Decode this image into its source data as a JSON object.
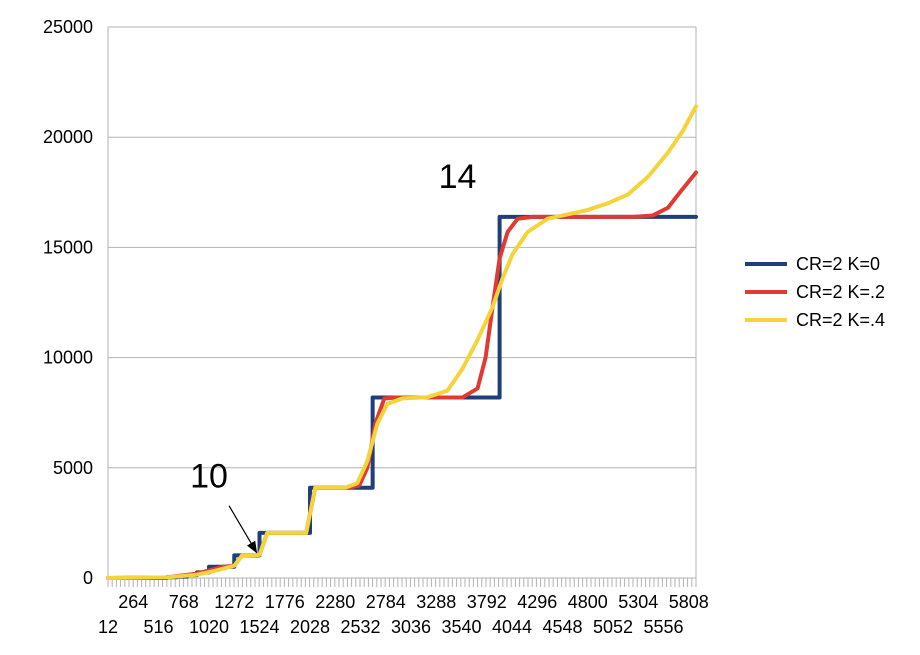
{
  "chart_data": {
    "type": "line",
    "title": "",
    "xlabel": "",
    "ylabel": "",
    "xlim": [
      12,
      5880
    ],
    "ylim": [
      0,
      25000
    ],
    "y_ticks": [
      0,
      5000,
      10000,
      15000,
      20000,
      25000
    ],
    "x_tick_labels_row1": [
      "264",
      "768",
      "1272",
      "1776",
      "2280",
      "2784",
      "3288",
      "3792",
      "4296",
      "4800",
      "5304",
      "5808"
    ],
    "x_tick_labels_row2": [
      "12",
      "516",
      "1020",
      "1524",
      "2028",
      "2532",
      "3036",
      "3540",
      "4044",
      "4548",
      "5052",
      "5556"
    ],
    "grid": "horizontal",
    "legend_position": "right",
    "series": [
      {
        "name": "CR=2 K=0",
        "color": "#1f3f7a",
        "points": [
          [
            12,
            0
          ],
          [
            600,
            0
          ],
          [
            600,
            32
          ],
          [
            700,
            32
          ],
          [
            700,
            64
          ],
          [
            800,
            64
          ],
          [
            800,
            128
          ],
          [
            900,
            128
          ],
          [
            900,
            256
          ],
          [
            1020,
            256
          ],
          [
            1020,
            512
          ],
          [
            1272,
            512
          ],
          [
            1272,
            1024
          ],
          [
            1524,
            1024
          ],
          [
            1524,
            2048
          ],
          [
            2028,
            2048
          ],
          [
            2028,
            4096
          ],
          [
            2653,
            4096
          ],
          [
            2653,
            8192
          ],
          [
            3920,
            8192
          ],
          [
            3920,
            16384
          ],
          [
            5880,
            16384
          ]
        ]
      },
      {
        "name": "CR=2 K=.2",
        "color": "#e03a32",
        "points": [
          [
            12,
            0
          ],
          [
            600,
            30
          ],
          [
            900,
            200
          ],
          [
            1150,
            500
          ],
          [
            1272,
            560
          ],
          [
            1350,
            1024
          ],
          [
            1524,
            1050
          ],
          [
            1600,
            2048
          ],
          [
            1990,
            2048
          ],
          [
            2080,
            4096
          ],
          [
            2420,
            4100
          ],
          [
            2520,
            4200
          ],
          [
            2600,
            5000
          ],
          [
            2680,
            7000
          ],
          [
            2770,
            8150
          ],
          [
            2900,
            8192
          ],
          [
            3550,
            8192
          ],
          [
            3700,
            8600
          ],
          [
            3780,
            10000
          ],
          [
            3850,
            12300
          ],
          [
            3920,
            14500
          ],
          [
            4000,
            15700
          ],
          [
            4100,
            16300
          ],
          [
            4250,
            16384
          ],
          [
            5250,
            16384
          ],
          [
            5450,
            16450
          ],
          [
            5600,
            16800
          ],
          [
            5720,
            17500
          ],
          [
            5880,
            18400
          ]
        ]
      },
      {
        "name": "CR=2 K=.4",
        "color": "#f5d33a",
        "points": [
          [
            12,
            0
          ],
          [
            600,
            30
          ],
          [
            900,
            150
          ],
          [
            1100,
            350
          ],
          [
            1272,
            560
          ],
          [
            1350,
            1024
          ],
          [
            1524,
            1050
          ],
          [
            1600,
            2048
          ],
          [
            1990,
            2048
          ],
          [
            2080,
            4096
          ],
          [
            2380,
            4100
          ],
          [
            2500,
            4300
          ],
          [
            2600,
            5300
          ],
          [
            2700,
            7000
          ],
          [
            2800,
            7900
          ],
          [
            2950,
            8150
          ],
          [
            3200,
            8200
          ],
          [
            3400,
            8500
          ],
          [
            3550,
            9500
          ],
          [
            3700,
            10800
          ],
          [
            3850,
            12300
          ],
          [
            3950,
            13600
          ],
          [
            4050,
            14700
          ],
          [
            4200,
            15700
          ],
          [
            4400,
            16300
          ],
          [
            4600,
            16500
          ],
          [
            4800,
            16700
          ],
          [
            5000,
            17000
          ],
          [
            5200,
            17400
          ],
          [
            5400,
            18200
          ],
          [
            5600,
            19300
          ],
          [
            5750,
            20300
          ],
          [
            5880,
            21400
          ]
        ]
      }
    ],
    "annotations": [
      {
        "text": "10",
        "x": 1020,
        "y": 4100,
        "arrow_to": [
          1524,
          1024
        ]
      },
      {
        "text": "14",
        "x": 3500,
        "y": 17700
      }
    ]
  }
}
